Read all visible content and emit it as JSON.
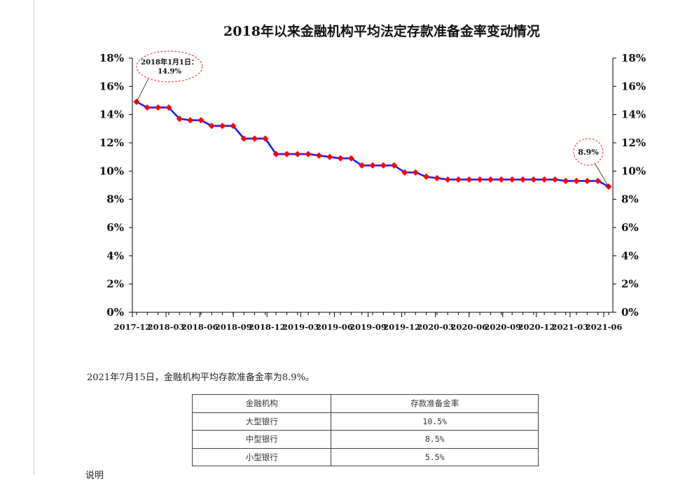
{
  "chart_data": {
    "type": "line",
    "title": "2018年以来金融机构平均法定存款准备金率变动情况",
    "x_tick_labels": [
      "2017-12",
      "2018-03",
      "2018-06",
      "2018-09",
      "2018-12",
      "2019-03",
      "2019-06",
      "2019-09",
      "2019-12",
      "2020-03",
      "2020-06",
      "2020-09",
      "2020-12",
      "2021-03",
      "2021-06"
    ],
    "y_tick_labels": [
      "0%",
      "2%",
      "4%",
      "6%",
      "8%",
      "10%",
      "12%",
      "14%",
      "16%",
      "18%"
    ],
    "ylim": [
      0,
      18
    ],
    "y_unit": "%",
    "grid": false,
    "series": [
      {
        "color": "#1a1aff",
        "marker_color": "#ff0000",
        "marker": "diamond",
        "values": [
          14.9,
          14.5,
          14.5,
          14.5,
          13.7,
          13.6,
          13.6,
          13.2,
          13.2,
          13.2,
          12.3,
          12.3,
          12.3,
          11.2,
          11.2,
          11.2,
          11.2,
          11.1,
          11.0,
          10.9,
          10.9,
          10.4,
          10.4,
          10.4,
          10.4,
          9.9,
          9.9,
          9.6,
          9.5,
          9.4,
          9.4,
          9.4,
          9.4,
          9.4,
          9.4,
          9.4,
          9.4,
          9.4,
          9.4,
          9.4,
          9.3,
          9.3,
          9.3,
          9.3,
          8.9
        ]
      }
    ],
    "annotations": [
      {
        "lines": [
          "2018年1月1日：",
          "14.9%"
        ],
        "point_index": 0,
        "style": "red-dashed-ellipse"
      },
      {
        "lines": [
          "8.9%"
        ],
        "point_index": 44,
        "style": "red-dashed-ellipse"
      }
    ]
  },
  "notice_text": "2021年7月15日，金融机构平均存款准备金率为8.9%。",
  "table": {
    "headers": [
      "金融机构",
      "存款准备金率"
    ],
    "rows": [
      [
        "大型银行",
        "10.5%"
      ],
      [
        "中型银行",
        "8.5%"
      ],
      [
        "小型银行",
        "5.5%"
      ]
    ]
  },
  "footnote": "说明"
}
